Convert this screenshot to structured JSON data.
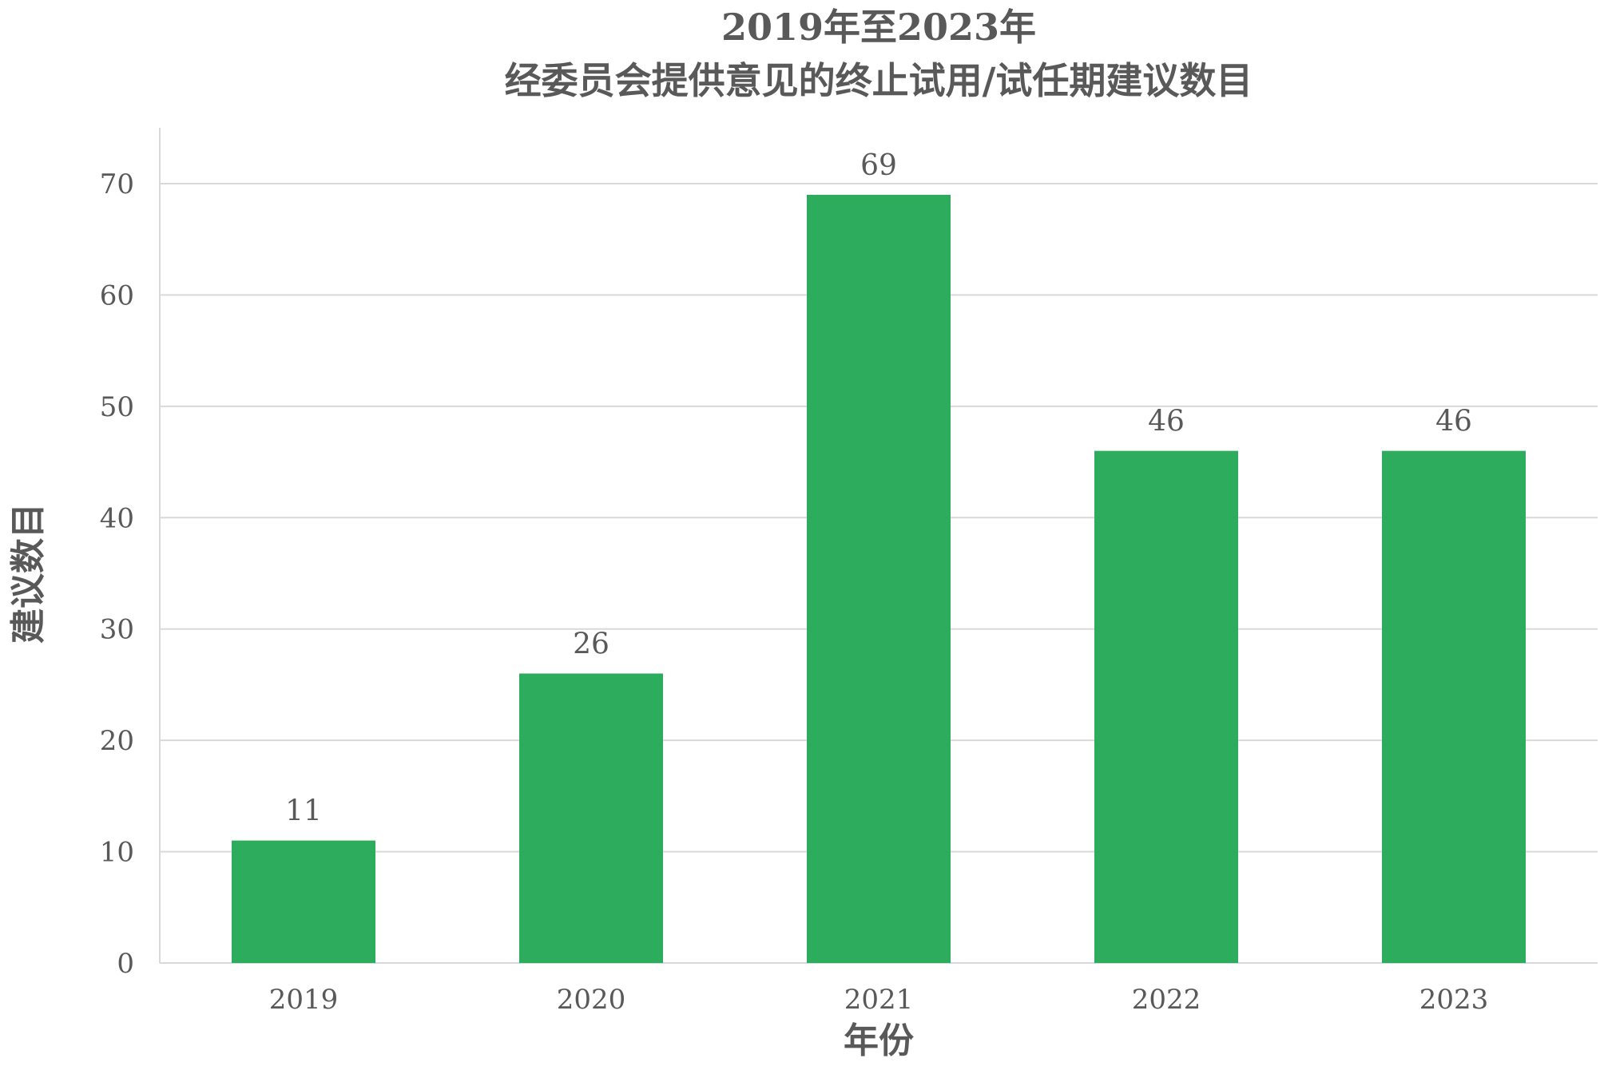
{
  "chart_data": {
    "type": "bar",
    "title_lines": [
      "2019年至2023年",
      "经委员会提供意见的终止试用/试任期建议数目"
    ],
    "xlabel": "年份",
    "ylabel": "建议数目",
    "categories": [
      "2019",
      "2020",
      "2021",
      "2022",
      "2023"
    ],
    "values": [
      11,
      26,
      69,
      46,
      46
    ],
    "data_labels": [
      "11",
      "26",
      "69",
      "46",
      "46"
    ],
    "ylim": [
      0,
      70
    ],
    "yticks": [
      "0",
      "10",
      "20",
      "30",
      "40",
      "50",
      "60",
      "70"
    ],
    "grid": true,
    "legend": "none",
    "bar_color": "#2eac5e"
  }
}
